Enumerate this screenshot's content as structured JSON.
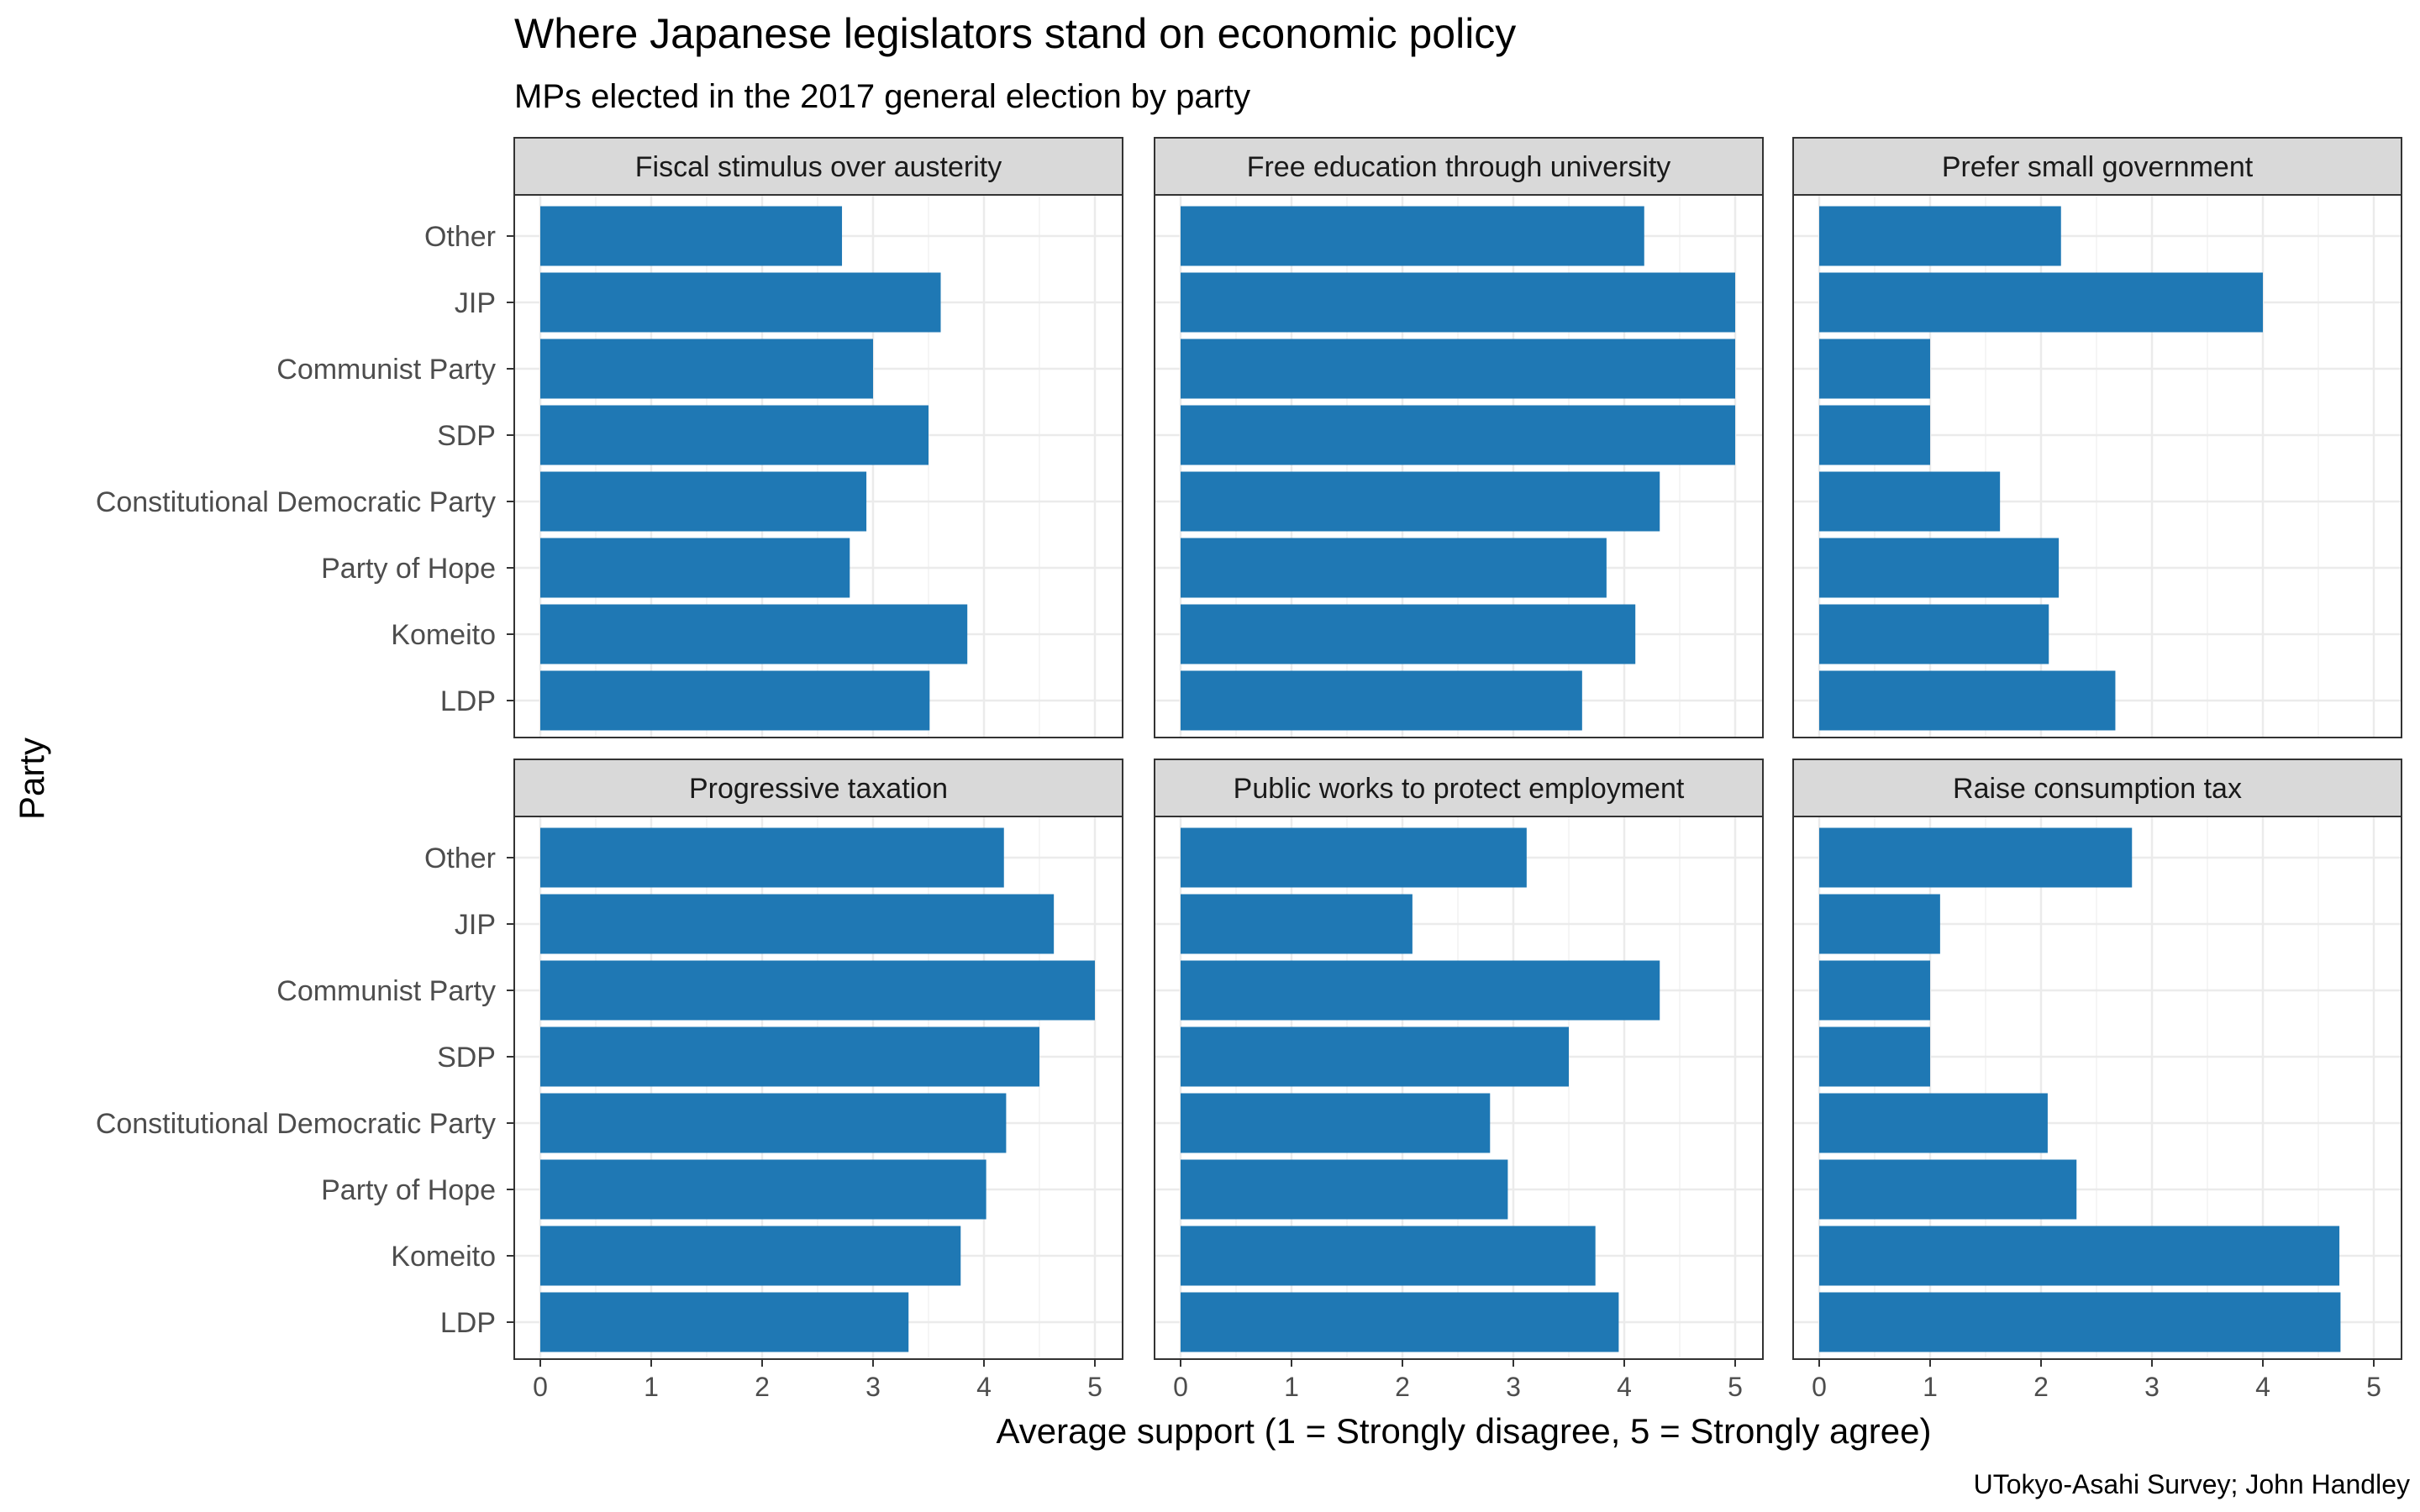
{
  "title": "Where Japanese legislators stand on economic policy",
  "subtitle": "MPs elected in the 2017 general election by party",
  "caption": "UTokyo-Asahi Survey; John Handley",
  "colors": {
    "bar": "#1f78b4",
    "strip_bg": "#d9d9d9",
    "panel_border": "#333333",
    "grid_major": "#ebebeb",
    "grid_minor": "#f5f5f5"
  },
  "chart_data": {
    "type": "bar",
    "orientation": "horizontal",
    "facets_layout": "2 rows x 3 columns",
    "xlabel": "Average support (1 = Strongly disagree, 5 = Strongly agree)",
    "ylabel": "Party",
    "categories": [
      "Other",
      "JIP",
      "Communist Party",
      "SDP",
      "Constitutional Democratic Party",
      "Party of Hope",
      "Komeito",
      "LDP"
    ],
    "facets": [
      {
        "label": "Fiscal stimulus over austerity",
        "xlim": [
          0,
          5.25
        ],
        "xticks": [
          "0",
          "1",
          "2",
          "3",
          "4",
          "5"
        ],
        "values": [
          2.72,
          3.61,
          3.0,
          3.5,
          2.94,
          2.79,
          3.85,
          3.51
        ]
      },
      {
        "label": "Free education through university",
        "xlim": [
          0,
          5.25
        ],
        "xticks": [
          "0",
          "1",
          "2",
          "3",
          "4",
          "5"
        ],
        "values": [
          4.18,
          5.0,
          5.0,
          5.0,
          4.32,
          3.84,
          4.1,
          3.62
        ]
      },
      {
        "label": "Prefer small government",
        "xlim": [
          0,
          5.25
        ],
        "xticks": [
          "0",
          "1",
          "2",
          "3",
          "4",
          "5"
        ],
        "values": [
          2.18,
          4.0,
          1.0,
          1.0,
          1.63,
          2.16,
          2.07,
          2.67
        ]
      },
      {
        "label": "Progressive taxation",
        "xlim": [
          0,
          5.25
        ],
        "xticks": [
          "0",
          "1",
          "2",
          "3",
          "4",
          "5"
        ],
        "values": [
          4.18,
          4.63,
          5.0,
          4.5,
          4.2,
          4.02,
          3.79,
          3.32
        ]
      },
      {
        "label": "Public works to protect employment",
        "xlim": [
          0,
          5.25
        ],
        "xticks": [
          "0",
          "1",
          "2",
          "3",
          "4",
          "5"
        ],
        "values": [
          3.12,
          2.09,
          4.32,
          3.5,
          2.79,
          2.95,
          3.74,
          3.95
        ]
      },
      {
        "label": "Raise consumption tax",
        "xlim": [
          0,
          5.25
        ],
        "xticks": [
          "0",
          "1",
          "2",
          "3",
          "4",
          "5"
        ],
        "values": [
          2.82,
          1.09,
          1.0,
          1.0,
          2.06,
          2.32,
          4.69,
          4.7
        ]
      }
    ]
  }
}
